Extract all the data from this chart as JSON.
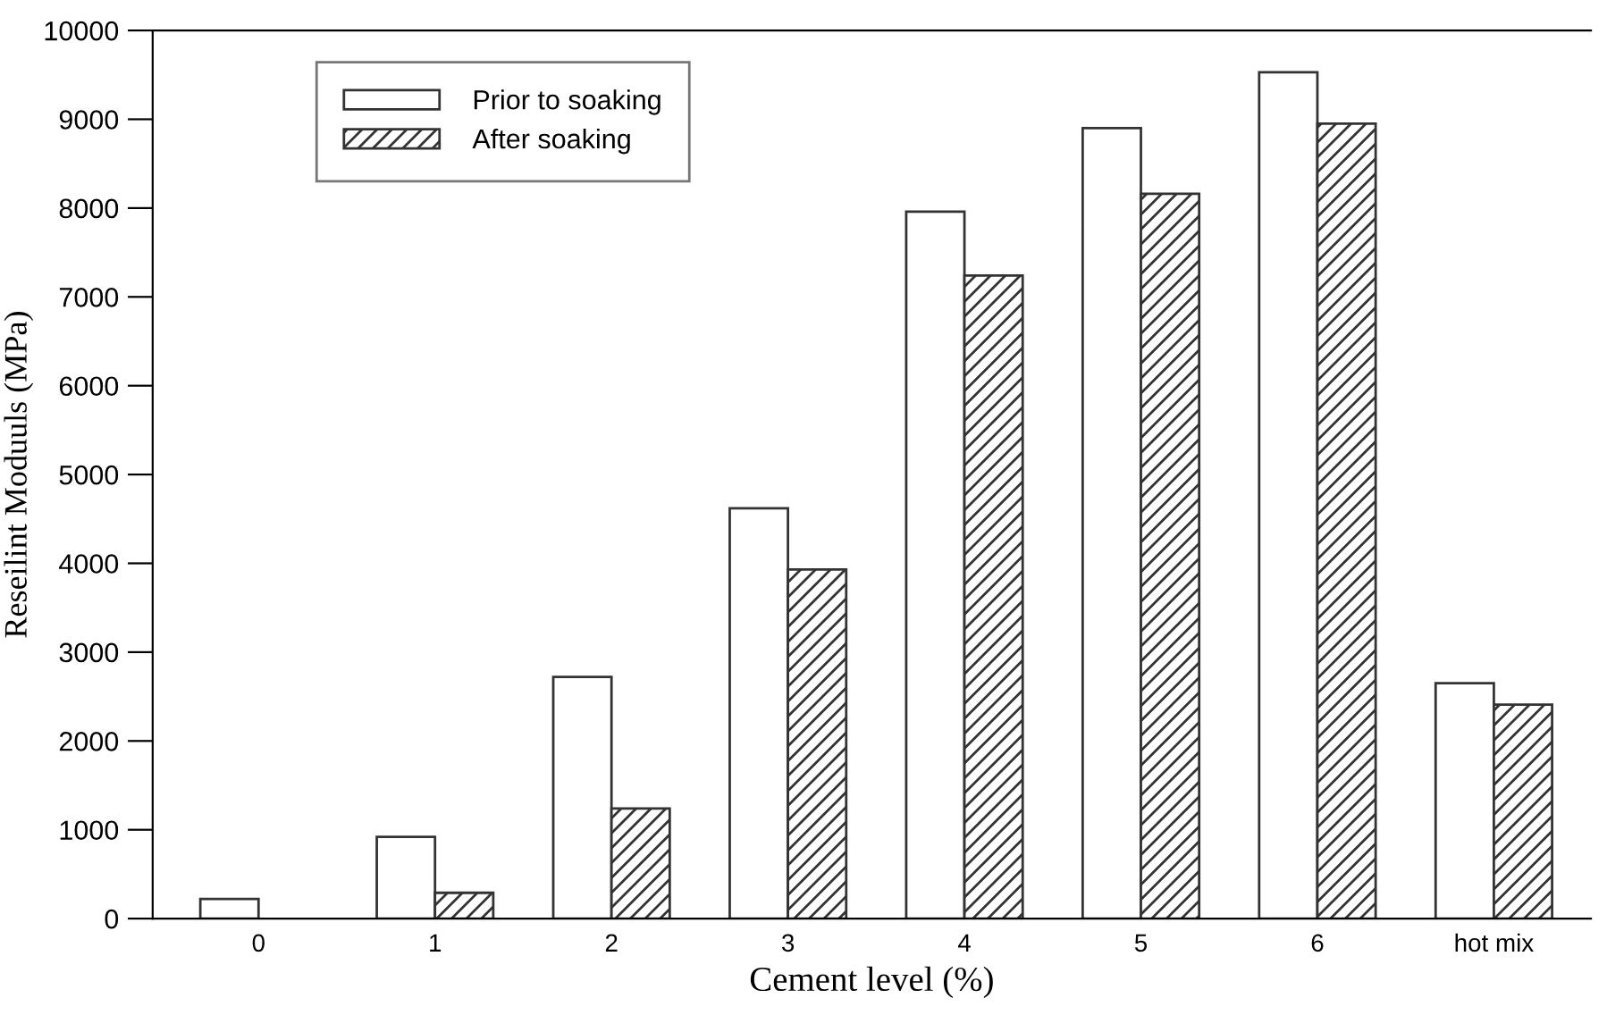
{
  "chart_data": {
    "type": "bar",
    "xlabel": "Cement level (%)",
    "ylabel": "Reseilint Moduuls (MPa)",
    "categories": [
      "0",
      "1",
      "2",
      "3",
      "4",
      "5",
      "6",
      "hot mix"
    ],
    "series": [
      {
        "name": "Prior to soaking",
        "color": "#ffffff",
        "values": [
          220,
          920,
          2720,
          4620,
          7960,
          8900,
          9530,
          2650
        ]
      },
      {
        "name": "After soaking",
        "color": "#333333",
        "values": [
          null,
          290,
          1240,
          3930,
          7240,
          8160,
          8950,
          2410
        ]
      }
    ],
    "ylim": [
      0,
      10000
    ],
    "yticks": [
      0,
      1000,
      2000,
      3000,
      4000,
      5000,
      6000,
      7000,
      8000,
      9000,
      10000
    ],
    "grid": false,
    "legend": "top left"
  }
}
